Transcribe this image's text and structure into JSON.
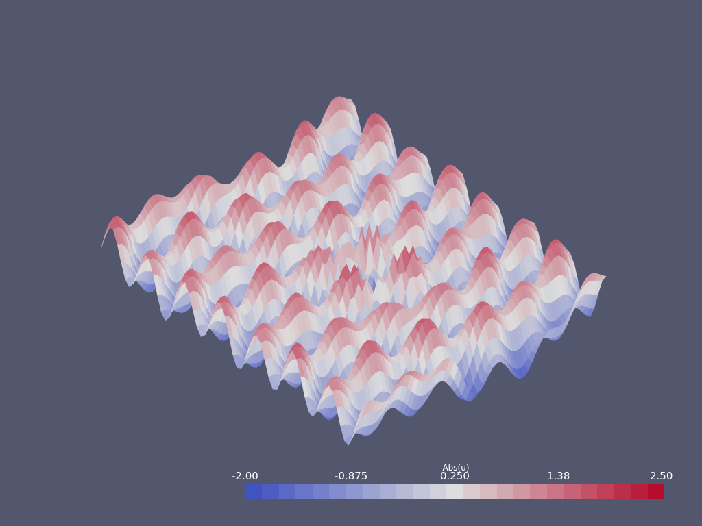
{
  "scalar_bar": {
    "title": "Abs(u)",
    "min": -2.0,
    "max": 2.5,
    "tick_labels": [
      "-2.00",
      "-0.875",
      "0.250",
      "1.38",
      "2.50"
    ],
    "num_colors": 25,
    "colormap": "coolwarm",
    "colors": {
      "low": "#3b4cc0",
      "mid": "#dddddd",
      "high": "#b40426"
    }
  },
  "scene": {
    "background": "#52576e",
    "surface_colormap": "coolwarm"
  }
}
